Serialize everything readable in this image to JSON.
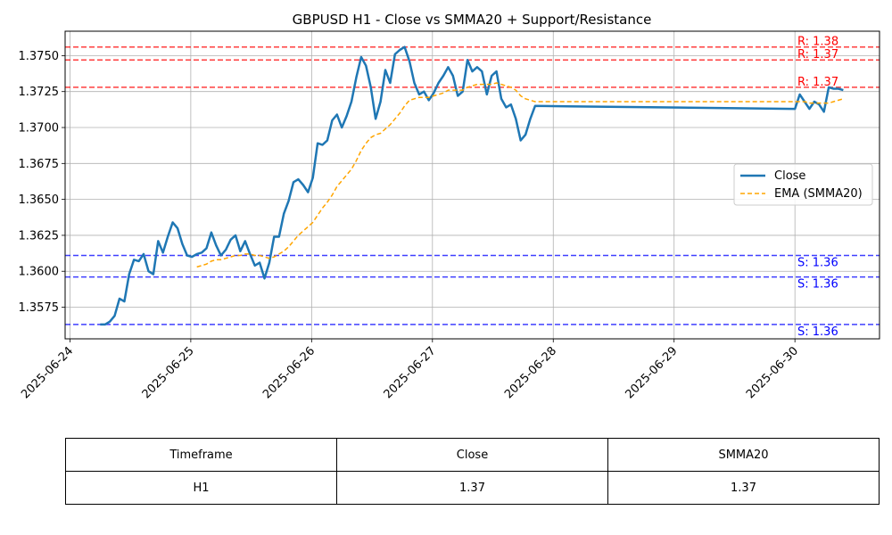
{
  "chart_data": {
    "type": "line",
    "title": "GBPUSD H1 - Close vs SMMA20 + Support/Resistance",
    "xlabel": "",
    "ylabel": "",
    "x_ticks": [
      "2025-06-24",
      "2025-06-25",
      "2025-06-26",
      "2025-06-27",
      "2025-06-28",
      "2025-06-29",
      "2025-06-30"
    ],
    "y_ticks": [
      "1.3575",
      "1.3600",
      "1.3625",
      "1.3650",
      "1.3675",
      "1.3700",
      "1.3725",
      "1.3750"
    ],
    "ylim": [
      1.3553,
      1.3767
    ],
    "xlim_days": [
      -0.04,
      6.7
    ],
    "grid": true,
    "legend_position": "center-right",
    "series": [
      {
        "name": "Close",
        "color": "#1f77b4",
        "style": "solid",
        "points": [
          [
            0.25,
            1.3563
          ],
          [
            0.29,
            1.3563
          ],
          [
            0.33,
            1.3565
          ],
          [
            0.37,
            1.3569
          ],
          [
            0.41,
            1.3581
          ],
          [
            0.45,
            1.3579
          ],
          [
            0.49,
            1.3598
          ],
          [
            0.53,
            1.3608
          ],
          [
            0.57,
            1.3607
          ],
          [
            0.61,
            1.3612
          ],
          [
            0.65,
            1.36
          ],
          [
            0.69,
            1.3598
          ],
          [
            0.73,
            1.3621
          ],
          [
            0.77,
            1.3613
          ],
          [
            0.81,
            1.3624
          ],
          [
            0.85,
            1.3634
          ],
          [
            0.89,
            1.363
          ],
          [
            0.93,
            1.3619
          ],
          [
            0.97,
            1.3611
          ],
          [
            1.01,
            1.361
          ],
          [
            1.05,
            1.3612
          ],
          [
            1.09,
            1.3613
          ],
          [
            1.13,
            1.3616
          ],
          [
            1.17,
            1.3627
          ],
          [
            1.21,
            1.3618
          ],
          [
            1.25,
            1.3611
          ],
          [
            1.29,
            1.3615
          ],
          [
            1.33,
            1.3622
          ],
          [
            1.37,
            1.3625
          ],
          [
            1.41,
            1.3614
          ],
          [
            1.45,
            1.3621
          ],
          [
            1.49,
            1.3612
          ],
          [
            1.53,
            1.3604
          ],
          [
            1.57,
            1.3606
          ],
          [
            1.61,
            1.3595
          ],
          [
            1.65,
            1.3606
          ],
          [
            1.69,
            1.3624
          ],
          [
            1.73,
            1.3624
          ],
          [
            1.77,
            1.364
          ],
          [
            1.81,
            1.3649
          ],
          [
            1.85,
            1.3662
          ],
          [
            1.89,
            1.3664
          ],
          [
            1.93,
            1.366
          ],
          [
            1.97,
            1.3655
          ],
          [
            2.01,
            1.3665
          ],
          [
            2.05,
            1.3689
          ],
          [
            2.09,
            1.3688
          ],
          [
            2.13,
            1.3691
          ],
          [
            2.17,
            1.3705
          ],
          [
            2.21,
            1.3709
          ],
          [
            2.25,
            1.37
          ],
          [
            2.29,
            1.3708
          ],
          [
            2.33,
            1.3718
          ],
          [
            2.37,
            1.3735
          ],
          [
            2.41,
            1.3749
          ],
          [
            2.45,
            1.3743
          ],
          [
            2.49,
            1.3728
          ],
          [
            2.53,
            1.3706
          ],
          [
            2.57,
            1.3718
          ],
          [
            2.61,
            1.374
          ],
          [
            2.65,
            1.3731
          ],
          [
            2.69,
            1.3751
          ],
          [
            2.73,
            1.3754
          ],
          [
            2.77,
            1.3756
          ],
          [
            2.81,
            1.3746
          ],
          [
            2.85,
            1.3731
          ],
          [
            2.89,
            1.3723
          ],
          [
            2.93,
            1.3725
          ],
          [
            2.97,
            1.3719
          ],
          [
            3.01,
            1.3724
          ],
          [
            3.05,
            1.3731
          ],
          [
            3.09,
            1.3736
          ],
          [
            3.13,
            1.3742
          ],
          [
            3.17,
            1.3736
          ],
          [
            3.21,
            1.3722
          ],
          [
            3.25,
            1.3725
          ],
          [
            3.29,
            1.3747
          ],
          [
            3.33,
            1.3739
          ],
          [
            3.37,
            1.3742
          ],
          [
            3.41,
            1.3739
          ],
          [
            3.45,
            1.3723
          ],
          [
            3.49,
            1.3736
          ],
          [
            3.53,
            1.3739
          ],
          [
            3.57,
            1.372
          ],
          [
            3.61,
            1.3714
          ],
          [
            3.65,
            1.3716
          ],
          [
            3.69,
            1.3706
          ],
          [
            3.73,
            1.3691
          ],
          [
            3.77,
            1.3695
          ],
          [
            3.81,
            1.3706
          ],
          [
            3.85,
            1.3715
          ],
          [
            6.0,
            1.3713
          ],
          [
            6.04,
            1.3723
          ],
          [
            6.08,
            1.3718
          ],
          [
            6.12,
            1.3713
          ],
          [
            6.16,
            1.3718
          ],
          [
            6.2,
            1.3716
          ],
          [
            6.24,
            1.3711
          ],
          [
            6.28,
            1.3728
          ],
          [
            6.32,
            1.3727
          ],
          [
            6.36,
            1.3727
          ],
          [
            6.4,
            1.3726
          ]
        ]
      },
      {
        "name": "EMA (SMMA20)",
        "color": "#ffa500",
        "style": "dashed",
        "points": [
          [
            1.05,
            1.3603
          ],
          [
            1.09,
            1.3604
          ],
          [
            1.13,
            1.3605
          ],
          [
            1.17,
            1.3607
          ],
          [
            1.21,
            1.3608
          ],
          [
            1.25,
            1.3608
          ],
          [
            1.29,
            1.3609
          ],
          [
            1.33,
            1.361
          ],
          [
            1.37,
            1.3611
          ],
          [
            1.41,
            1.3611
          ],
          [
            1.45,
            1.3612
          ],
          [
            1.49,
            1.3612
          ],
          [
            1.53,
            1.3611
          ],
          [
            1.57,
            1.3611
          ],
          [
            1.61,
            1.361
          ],
          [
            1.65,
            1.3609
          ],
          [
            1.69,
            1.361
          ],
          [
            1.73,
            1.3612
          ],
          [
            1.77,
            1.3614
          ],
          [
            1.81,
            1.3617
          ],
          [
            1.85,
            1.3621
          ],
          [
            1.89,
            1.3625
          ],
          [
            1.93,
            1.3628
          ],
          [
            1.97,
            1.3631
          ],
          [
            2.01,
            1.3634
          ],
          [
            2.05,
            1.3639
          ],
          [
            2.09,
            1.3644
          ],
          [
            2.13,
            1.3648
          ],
          [
            2.17,
            1.3653
          ],
          [
            2.21,
            1.3659
          ],
          [
            2.25,
            1.3663
          ],
          [
            2.29,
            1.3667
          ],
          [
            2.33,
            1.3671
          ],
          [
            2.37,
            1.3677
          ],
          [
            2.41,
            1.3684
          ],
          [
            2.45,
            1.3689
          ],
          [
            2.49,
            1.3693
          ],
          [
            2.53,
            1.3695
          ],
          [
            2.57,
            1.3696
          ],
          [
            2.61,
            1.3699
          ],
          [
            2.65,
            1.3702
          ],
          [
            2.69,
            1.3706
          ],
          [
            2.73,
            1.371
          ],
          [
            2.77,
            1.3715
          ],
          [
            2.81,
            1.3719
          ],
          [
            2.85,
            1.372
          ],
          [
            2.89,
            1.3721
          ],
          [
            2.93,
            1.3721
          ],
          [
            2.97,
            1.3721
          ],
          [
            3.01,
            1.3722
          ],
          [
            3.05,
            1.3723
          ],
          [
            3.09,
            1.3724
          ],
          [
            3.13,
            1.3726
          ],
          [
            3.17,
            1.3726
          ],
          [
            3.21,
            1.3726
          ],
          [
            3.25,
            1.3726
          ],
          [
            3.29,
            1.3728
          ],
          [
            3.33,
            1.3729
          ],
          [
            3.37,
            1.373
          ],
          [
            3.41,
            1.373
          ],
          [
            3.45,
            1.373
          ],
          [
            3.49,
            1.373
          ],
          [
            3.53,
            1.3731
          ],
          [
            3.57,
            1.373
          ],
          [
            3.61,
            1.3729
          ],
          [
            3.65,
            1.3728
          ],
          [
            3.69,
            1.3726
          ],
          [
            3.73,
            1.3722
          ],
          [
            3.77,
            1.372
          ],
          [
            3.81,
            1.3719
          ],
          [
            3.85,
            1.3718
          ],
          [
            6.0,
            1.3718
          ],
          [
            6.04,
            1.3718
          ],
          [
            6.08,
            1.3718
          ],
          [
            6.12,
            1.3717
          ],
          [
            6.16,
            1.3717
          ],
          [
            6.2,
            1.3717
          ],
          [
            6.24,
            1.3717
          ],
          [
            6.28,
            1.3717
          ],
          [
            6.32,
            1.3718
          ],
          [
            6.36,
            1.3719
          ],
          [
            6.4,
            1.372
          ]
        ]
      }
    ],
    "resistance_levels": [
      {
        "value": 1.3756,
        "label": "R: 1.38"
      },
      {
        "value": 1.3747,
        "label": "R: 1.37"
      },
      {
        "value": 1.3728,
        "label": "R: 1.37"
      }
    ],
    "support_levels": [
      {
        "value": 1.3611,
        "label": "S: 1.36"
      },
      {
        "value": 1.3596,
        "label": "S: 1.36"
      },
      {
        "value": 1.3563,
        "label": "S: 1.36"
      }
    ],
    "colors": {
      "resistance": "#ff0000",
      "support": "#0000ff",
      "grid": "#b0b0b0"
    }
  },
  "table": {
    "headers": [
      "Timeframe",
      "Close",
      "SMMA20"
    ],
    "row": [
      "H1",
      "1.37",
      "1.37"
    ]
  }
}
